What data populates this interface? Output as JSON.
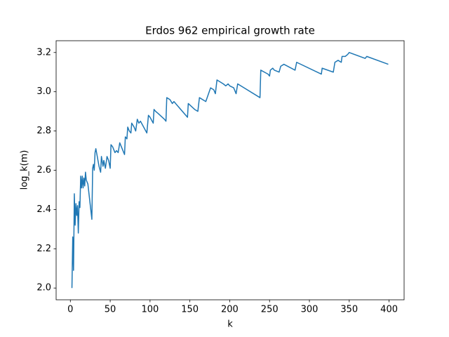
{
  "chart_data": {
    "type": "line",
    "title": "Erdos 962 empirical growth rate",
    "xlabel": "k",
    "ylabel": "log_k(m)",
    "color": "#1f77b4",
    "x": [
      2,
      3,
      4,
      5,
      6,
      7,
      8,
      9,
      10,
      11,
      12,
      13,
      14,
      15,
      16,
      17,
      18,
      19,
      20,
      22,
      27,
      28,
      29,
      30,
      31,
      32,
      36,
      38,
      39,
      41,
      42,
      44,
      46,
      48,
      50,
      51,
      53,
      56,
      58,
      60,
      62,
      64,
      66,
      68,
      69,
      71,
      72,
      74,
      76,
      77,
      80,
      82,
      84,
      86,
      88,
      92,
      96,
      98,
      100,
      104,
      105,
      107,
      110,
      118,
      120,
      121,
      125,
      128,
      130,
      147,
      148,
      156,
      160,
      162,
      170,
      176,
      180,
      182,
      184,
      192,
      195,
      198,
      200,
      205,
      208,
      210,
      238,
      239,
      248,
      250,
      251,
      254,
      256,
      262,
      264,
      268,
      282,
      284,
      315,
      316,
      330,
      332,
      336,
      340,
      341,
      345,
      348,
      350,
      370,
      372,
      399
    ],
    "values": [
      2.0,
      2.26,
      2.09,
      2.48,
      2.32,
      2.43,
      2.37,
      2.42,
      2.28,
      2.44,
      2.41,
      2.57,
      2.51,
      2.57,
      2.51,
      2.56,
      2.52,
      2.59,
      2.55,
      2.53,
      2.35,
      2.61,
      2.63,
      2.6,
      2.69,
      2.71,
      2.62,
      2.59,
      2.67,
      2.62,
      2.65,
      2.61,
      2.67,
      2.65,
      2.61,
      2.73,
      2.72,
      2.69,
      2.7,
      2.69,
      2.74,
      2.72,
      2.7,
      2.68,
      2.77,
      2.76,
      2.82,
      2.8,
      2.79,
      2.84,
      2.82,
      2.8,
      2.86,
      2.84,
      2.85,
      2.82,
      2.79,
      2.88,
      2.87,
      2.84,
      2.91,
      2.9,
      2.89,
      2.86,
      2.85,
      2.97,
      2.96,
      2.94,
      2.95,
      2.87,
      2.94,
      2.91,
      2.9,
      2.97,
      2.95,
      3.02,
      3.01,
      2.99,
      3.06,
      3.04,
      3.03,
      3.04,
      3.03,
      3.02,
      2.99,
      3.04,
      2.97,
      3.11,
      3.09,
      3.08,
      3.11,
      3.12,
      3.11,
      3.1,
      3.13,
      3.14,
      3.11,
      3.15,
      3.09,
      3.12,
      3.1,
      3.15,
      3.16,
      3.15,
      3.18,
      3.18,
      3.19,
      3.2,
      3.17,
      3.18,
      3.14
    ],
    "xlim": [
      -17.85,
      418.85
    ],
    "ylim": [
      1.94,
      3.26
    ],
    "xticks": [
      0,
      50,
      100,
      150,
      200,
      250,
      300,
      350,
      400
    ],
    "yticks": [
      {
        "value": 2.0,
        "label": "2.0"
      },
      2.2,
      2.4,
      2.6,
      2.8,
      {
        "value": 3.0,
        "label": "3.0"
      },
      3.2
    ]
  }
}
